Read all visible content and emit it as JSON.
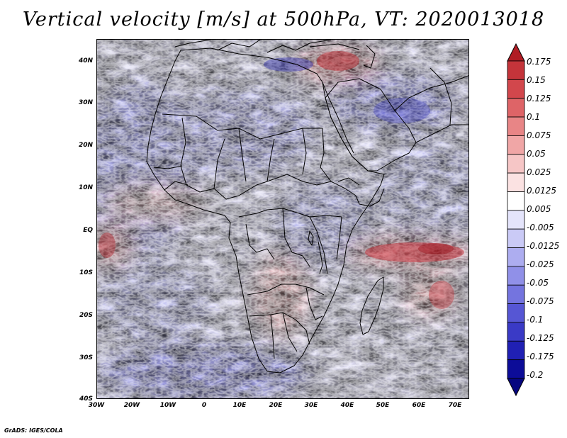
{
  "title": "Vertical velocity [m/s] at 500hPa, VT: 2020013018",
  "credit": "GrADS: IGES/COLA",
  "y_ticks": [
    "40N",
    "30N",
    "20N",
    "10N",
    "EQ",
    "10S",
    "20S",
    "30S",
    "40S"
  ],
  "x_ticks": [
    "30W",
    "20W",
    "10W",
    "0",
    "10E",
    "20E",
    "30E",
    "40E",
    "50E",
    "60E",
    "70E"
  ],
  "colorbar": {
    "levels": [
      "0.175",
      "0.15",
      "0.125",
      "0.1",
      "0.075",
      "0.05",
      "0.025",
      "0.0125",
      "0.005",
      "-0.005",
      "-0.0125",
      "-0.025",
      "-0.05",
      "-0.075",
      "-0.1",
      "-0.125",
      "-0.175",
      "-0.2"
    ],
    "colors": [
      "#b01c24",
      "#c4343a",
      "#d2474c",
      "#de6467",
      "#e88586",
      "#f0a6a6",
      "#f6c6c6",
      "#fbe2e2",
      "#ffffff",
      "#e4e4fb",
      "#cacaf6",
      "#adadf0",
      "#9090e8",
      "#7474df",
      "#5656d4",
      "#3a3ac6",
      "#2020b4",
      "#0c0c98",
      "#060680"
    ]
  },
  "colors": {
    "red_core": "#c81e28",
    "red_mid": "#e88a8a",
    "blue_core": "#3b3bd0",
    "blue_mid": "#9c9cec",
    "border": "#000000"
  }
}
